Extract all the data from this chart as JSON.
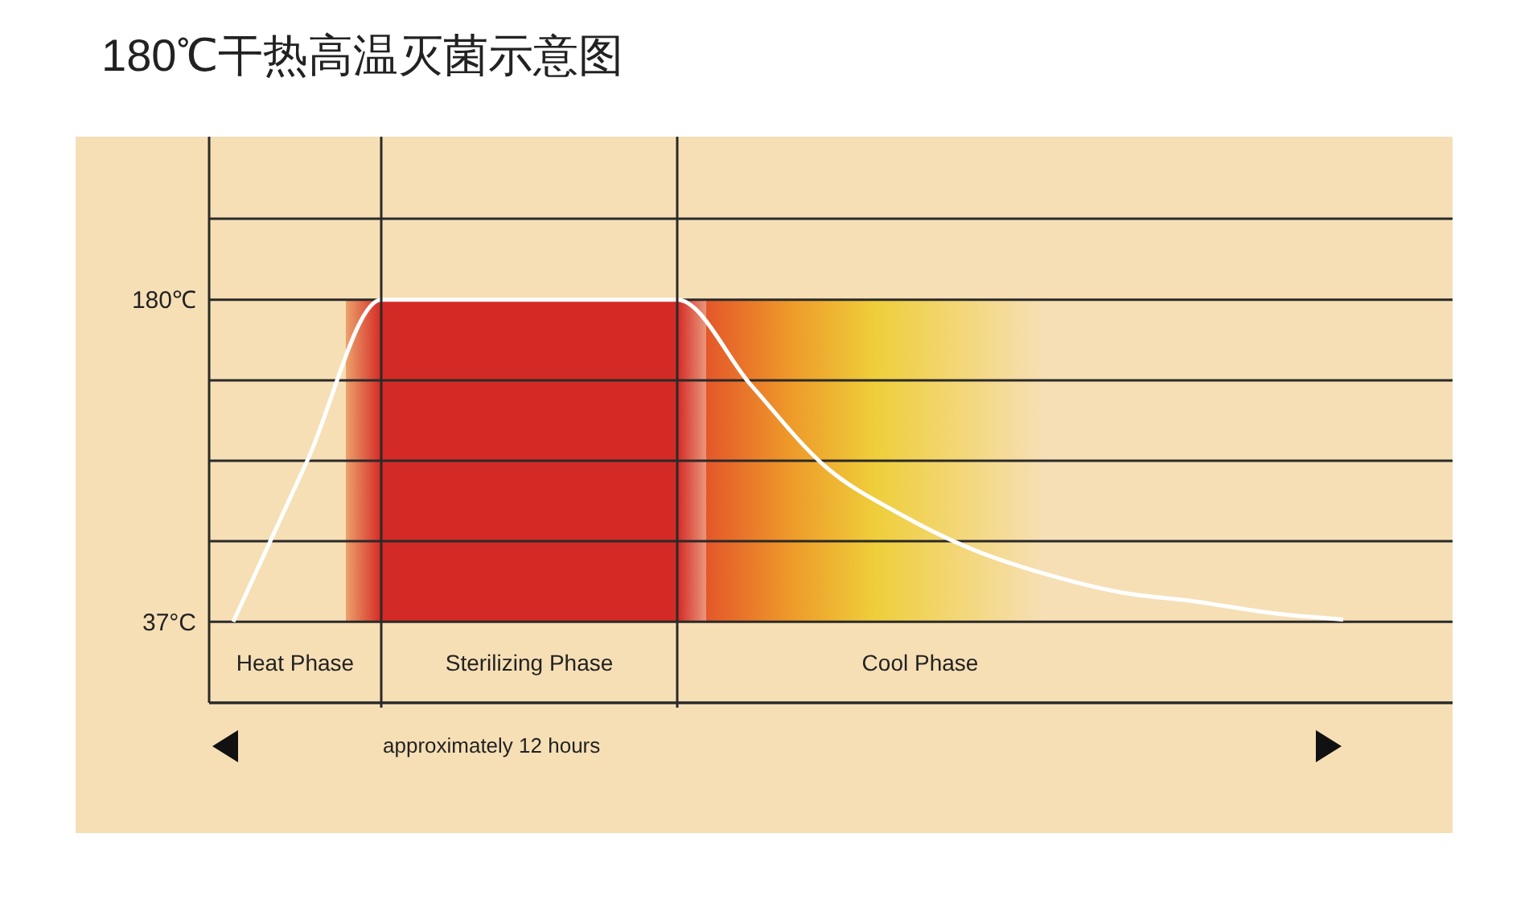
{
  "chart_data": {
    "type": "line",
    "title": "180℃干热高温灭菌示意图",
    "categories": [
      null,
      null,
      null,
      null,
      null,
      null,
      null,
      null,
      null,
      null,
      null,
      null,
      null,
      null,
      null,
      null
    ],
    "series": [
      {
        "color": "#ffffff",
        "values": [
          37,
          108.5,
          180,
          180,
          180,
          180,
          180,
          142,
          106,
          85,
          69,
          58,
          50,
          46,
          41,
          38
        ]
      }
    ],
    "ylim": [
      1,
      216
    ],
    "yticks": [
      {
        "value": 37,
        "label": "37°C"
      },
      {
        "value": 72.75,
        "label": null
      },
      {
        "value": 108.5,
        "label": null
      },
      {
        "value": 144.25,
        "label": null
      },
      {
        "value": 180,
        "label": "180℃"
      }
    ],
    "grid": "y",
    "tick_labels": "y",
    "marker": "none",
    "line_style": "solid",
    "legend": false,
    "annotations": [
      "Heat Phase",
      "Sterilizing Phase",
      "Cool Phase",
      "approximately 12 hours"
    ]
  }
}
